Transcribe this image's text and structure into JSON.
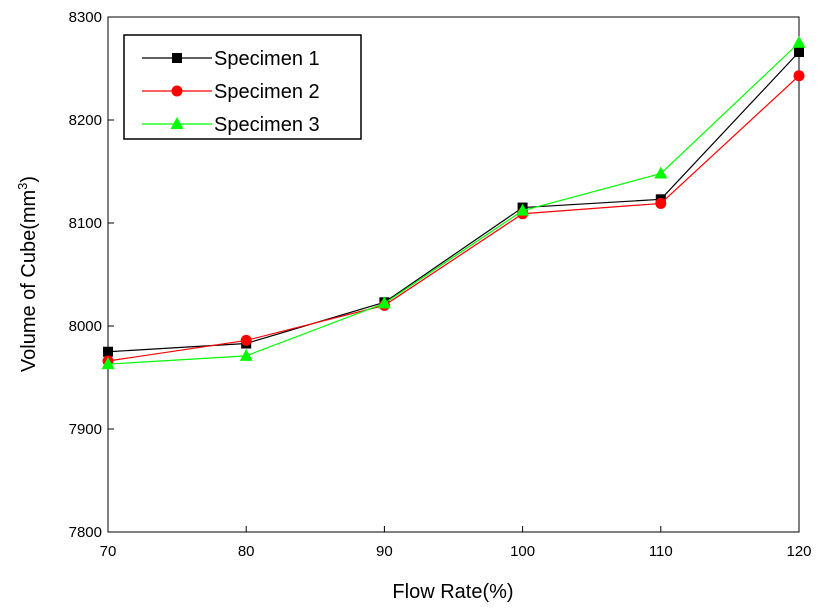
{
  "chart_data": {
    "type": "line",
    "title": "",
    "xlabel": "Flow Rate(%)",
    "ylabel": "Volume of Cube(mm",
    "ylabel_superscript": "3",
    "ylabel_suffix": ")",
    "x": [
      70,
      80,
      90,
      100,
      110,
      120
    ],
    "x_ticks": [
      "70",
      "80",
      "90",
      "100",
      "110",
      "120"
    ],
    "y_ticks": [
      "7800",
      "7900",
      "8000",
      "8100",
      "8200",
      "8300"
    ],
    "xlim": [
      70,
      120
    ],
    "ylim": [
      7800,
      8300
    ],
    "grid": false,
    "legend_position": "top-left",
    "series": [
      {
        "name": "Specimen 1",
        "color": "#000000",
        "marker": "square",
        "values": [
          7975,
          7983,
          8023,
          8115,
          8123,
          8266
        ]
      },
      {
        "name": "Specimen 2",
        "color": "#ff0000",
        "marker": "circle",
        "values": [
          7966,
          7986,
          8020,
          8109,
          8119,
          8243
        ]
      },
      {
        "name": "Specimen 3",
        "color": "#00ff00",
        "marker": "triangle",
        "values": [
          7963,
          7971,
          8022,
          8112,
          8148,
          8275
        ]
      }
    ]
  }
}
